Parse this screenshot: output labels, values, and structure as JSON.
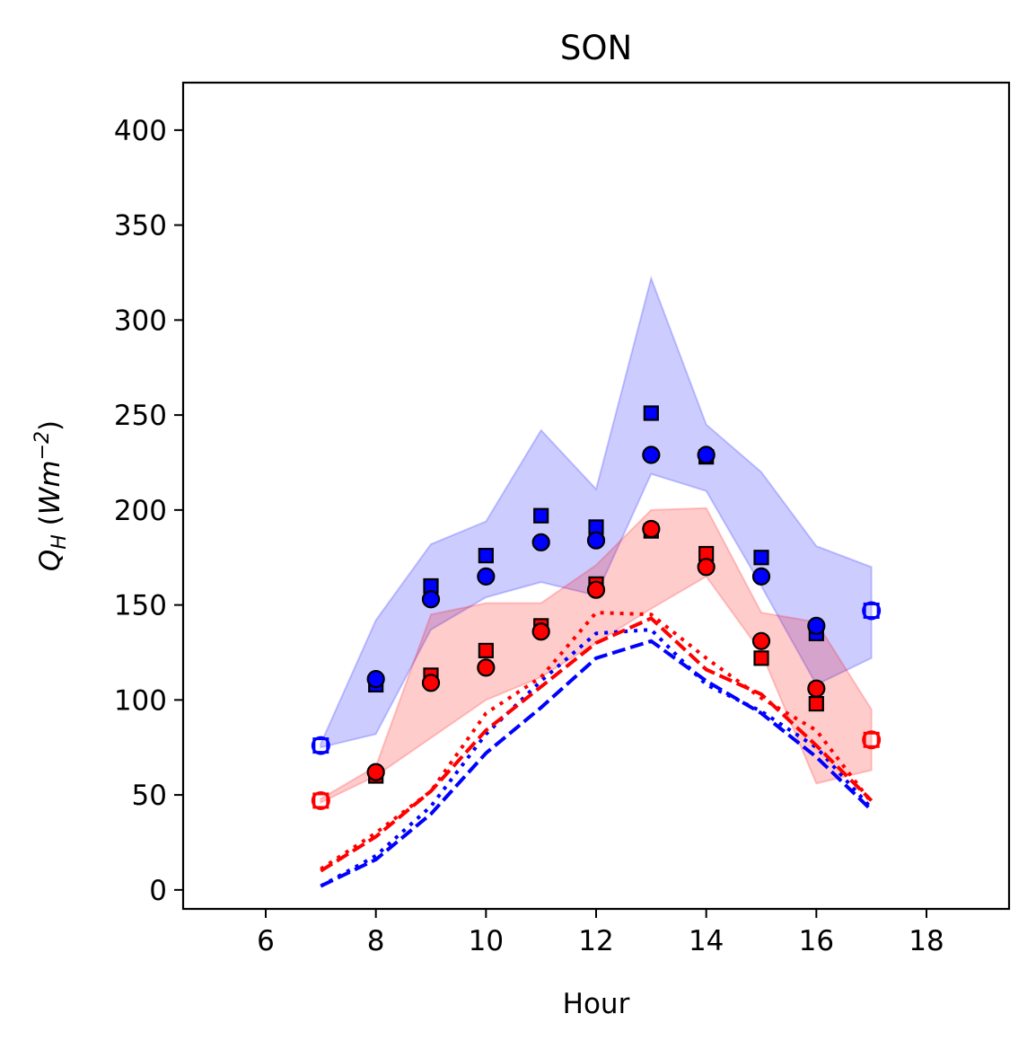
{
  "chart_data": {
    "type": "scatter",
    "title": "SON",
    "xlabel": "Hour",
    "ylabel_main": "Q",
    "ylabel_sub": "H",
    "ylabel_unit_open": " (",
    "ylabel_unit_base": "Wm",
    "ylabel_unit_sup": "−2",
    "ylabel_unit_close": ")",
    "xlim": [
      4.5,
      19.5
    ],
    "ylim": [
      -10,
      425
    ],
    "xticks": [
      6,
      8,
      10,
      12,
      14,
      16,
      18
    ],
    "yticks": [
      0,
      50,
      100,
      150,
      200,
      250,
      300,
      350,
      400
    ],
    "colors": {
      "blue": "#0000ff",
      "red": "#ff0000"
    },
    "bands": [
      {
        "color": "#0000ff",
        "x": [
          7,
          8,
          9,
          10,
          11,
          12,
          13,
          14,
          15,
          16,
          17
        ],
        "upper": [
          77,
          142,
          182,
          194,
          242,
          211,
          322,
          245,
          220,
          181,
          170
        ],
        "lower": [
          75,
          82,
          137,
          154,
          162,
          155,
          219,
          210,
          160,
          108,
          122
        ]
      },
      {
        "color": "#ff0000",
        "x": [
          7,
          8,
          9,
          10,
          11,
          12,
          13,
          14,
          15,
          16,
          17
        ],
        "upper": [
          48,
          65,
          145,
          151,
          151,
          171,
          200,
          201,
          146,
          141,
          95
        ],
        "lower": [
          46,
          60,
          80,
          100,
          112,
          130,
          148,
          165,
          125,
          56,
          63
        ]
      }
    ],
    "series": [
      {
        "color": "#0000ff",
        "marker": "square",
        "filled": true,
        "x": [
          8,
          9,
          10,
          11,
          12,
          13,
          14,
          15,
          16
        ],
        "y": [
          108,
          160,
          176,
          197,
          191,
          251,
          228,
          175,
          135
        ]
      },
      {
        "color": "#0000ff",
        "marker": "circle",
        "filled": true,
        "x": [
          8,
          9,
          10,
          11,
          12,
          13,
          14,
          15,
          16
        ],
        "y": [
          111,
          153,
          165,
          183,
          184,
          229,
          229,
          165,
          139
        ]
      },
      {
        "color": "#0000ff",
        "marker": "square",
        "filled": false,
        "x": [
          7,
          17
        ],
        "y": [
          76,
          147
        ]
      },
      {
        "color": "#0000ff",
        "marker": "circle",
        "filled": false,
        "x": [
          7,
          17
        ],
        "y": [
          76,
          147
        ]
      },
      {
        "color": "#ff0000",
        "marker": "square",
        "filled": true,
        "x": [
          8,
          9,
          10,
          11,
          12,
          13,
          14,
          15,
          16
        ],
        "y": [
          60,
          113,
          126,
          139,
          161,
          189,
          177,
          122,
          98
        ]
      },
      {
        "color": "#ff0000",
        "marker": "circle",
        "filled": true,
        "x": [
          8,
          9,
          10,
          11,
          12,
          13,
          14,
          15,
          16
        ],
        "y": [
          62,
          109,
          117,
          136,
          158,
          190,
          170,
          131,
          106
        ]
      },
      {
        "color": "#ff0000",
        "marker": "square",
        "filled": false,
        "x": [
          7,
          17
        ],
        "y": [
          47,
          79
        ]
      },
      {
        "color": "#ff0000",
        "marker": "circle",
        "filled": false,
        "x": [
          7,
          17
        ],
        "y": [
          47,
          79
        ]
      }
    ],
    "lines": [
      {
        "color": "#0000ff",
        "style": "dashed",
        "x": [
          7,
          8,
          9,
          10,
          11,
          12,
          13,
          14,
          15,
          16,
          17
        ],
        "y": [
          2,
          16,
          40,
          72,
          96,
          122,
          131,
          110,
          93,
          70,
          42
        ]
      },
      {
        "color": "#0000ff",
        "style": "dotted",
        "x": [
          7,
          8,
          9,
          10,
          11,
          12,
          13,
          14,
          15,
          16,
          17
        ],
        "y": [
          2,
          18,
          44,
          82,
          110,
          135,
          137,
          108,
          94,
          75,
          43
        ]
      },
      {
        "color": "#ff0000",
        "style": "dashed",
        "x": [
          7,
          8,
          9,
          10,
          11,
          12,
          13,
          14,
          15,
          16,
          17
        ],
        "y": [
          10,
          28,
          52,
          84,
          107,
          130,
          143,
          116,
          103,
          76,
          47
        ]
      },
      {
        "color": "#ff0000",
        "style": "dotted",
        "x": [
          7,
          8,
          9,
          10,
          11,
          12,
          13,
          14,
          15,
          16,
          17
        ],
        "y": [
          11,
          30,
          52,
          93,
          112,
          146,
          145,
          122,
          101,
          84,
          46
        ]
      }
    ]
  }
}
